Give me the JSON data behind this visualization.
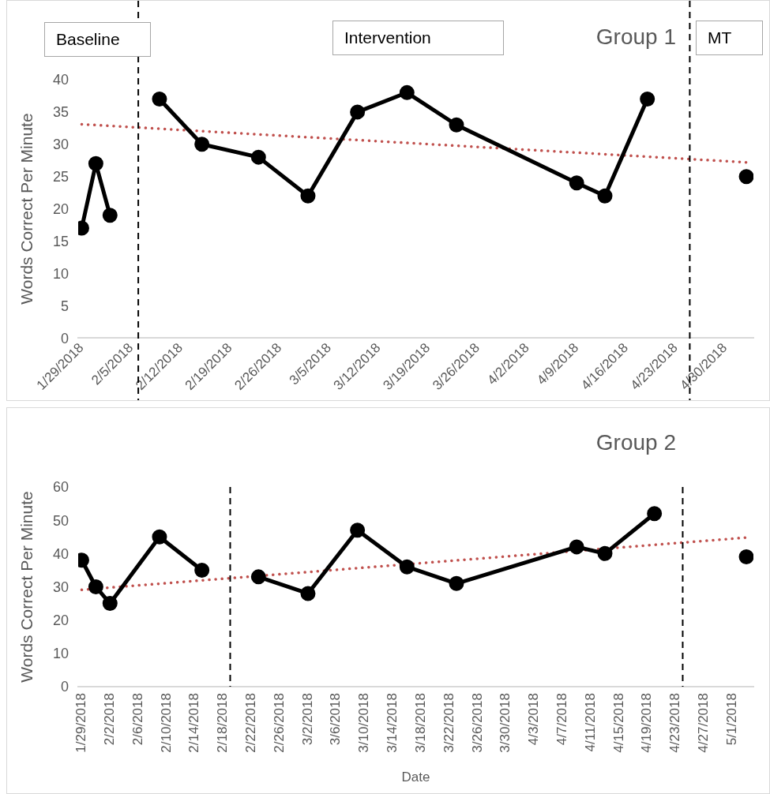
{
  "chart_data": [
    {
      "type": "line",
      "title": "Group 1",
      "ylabel": "Words Correct Per Minute",
      "annotations": [
        "Baseline",
        "Intervention",
        "MT"
      ],
      "xlim": [
        "2018-01-28T12:00",
        "2018-05-04T00:00"
      ],
      "ylim": [
        0,
        40
      ],
      "yticks": [
        0,
        5,
        10,
        15,
        20,
        25,
        30,
        35,
        40
      ],
      "xticks": [
        {
          "value": "2018-01-29",
          "label": "1/29/2018"
        },
        {
          "value": "2018-02-05",
          "label": "2/5/2018"
        },
        {
          "value": "2018-02-12",
          "label": "2/12/2018"
        },
        {
          "value": "2018-02-19",
          "label": "2/19/2018"
        },
        {
          "value": "2018-02-26",
          "label": "2/26/2018"
        },
        {
          "value": "2018-03-05",
          "label": "3/5/2018"
        },
        {
          "value": "2018-03-12",
          "label": "3/12/2018"
        },
        {
          "value": "2018-03-19",
          "label": "3/19/2018"
        },
        {
          "value": "2018-03-26",
          "label": "3/26/2018"
        },
        {
          "value": "2018-04-02",
          "label": "4/2/2018"
        },
        {
          "value": "2018-04-09",
          "label": "4/9/2018"
        },
        {
          "value": "2018-04-16",
          "label": "4/16/2018"
        },
        {
          "value": "2018-04-23",
          "label": "4/23/2018"
        },
        {
          "value": "2018-04-30",
          "label": "4/30/2018"
        }
      ],
      "grid": false,
      "legend": false,
      "series": [
        {
          "type": "line",
          "color": "#000000",
          "marker": "circle",
          "line_style": "solid",
          "x": [
            "2018-01-29",
            "2018-01-31",
            "2018-02-02"
          ],
          "values": [
            17,
            27,
            19
          ]
        },
        {
          "type": "line",
          "color": "#000000",
          "marker": "circle",
          "line_style": "solid",
          "x": [
            "2018-02-09",
            "2018-02-15",
            "2018-02-23",
            "2018-03-02",
            "2018-03-09",
            "2018-03-16",
            "2018-03-23",
            "2018-04-09",
            "2018-04-13",
            "2018-04-19"
          ],
          "values": [
            37,
            30,
            28,
            22,
            35,
            38,
            33,
            24,
            22,
            37
          ]
        },
        {
          "type": "scatter",
          "color": "#000000",
          "marker": "circle",
          "x": [
            "2018-05-03"
          ],
          "values": [
            25
          ]
        },
        {
          "type": "line",
          "color": "#c0504d",
          "marker": "none",
          "line_style": "dotted",
          "x": [
            "2018-01-29",
            "2018-05-03"
          ],
          "values": [
            33.1,
            27.2
          ]
        }
      ],
      "ref_lines": [
        {
          "axis": "x",
          "value": "2018-02-06",
          "label": null,
          "color": "#000000",
          "line_style": "dashed"
        },
        {
          "axis": "x",
          "value": "2018-04-25",
          "label": null,
          "color": "#000000",
          "line_style": "dashed"
        }
      ]
    },
    {
      "type": "line",
      "title": "Group 2",
      "xlabel": "Date",
      "ylabel": "Words Correct Per Minute",
      "xlim": [
        "2018-01-28T12:00",
        "2018-05-04T00:00"
      ],
      "ylim": [
        0,
        60
      ],
      "yticks": [
        0,
        10,
        20,
        30,
        40,
        50,
        60
      ],
      "xticks": [
        {
          "value": "2018-01-29",
          "label": "1/29/2018"
        },
        {
          "value": "2018-02-02",
          "label": "2/2/2018"
        },
        {
          "value": "2018-02-06",
          "label": "2/6/2018"
        },
        {
          "value": "2018-02-10",
          "label": "2/10/2018"
        },
        {
          "value": "2018-02-14",
          "label": "2/14/2018"
        },
        {
          "value": "2018-02-18",
          "label": "2/18/2018"
        },
        {
          "value": "2018-02-22",
          "label": "2/22/2018"
        },
        {
          "value": "2018-02-26",
          "label": "2/26/2018"
        },
        {
          "value": "2018-03-02",
          "label": "3/2/2018"
        },
        {
          "value": "2018-03-06",
          "label": "3/6/2018"
        },
        {
          "value": "2018-03-10",
          "label": "3/10/2018"
        },
        {
          "value": "2018-03-14",
          "label": "3/14/2018"
        },
        {
          "value": "2018-03-18",
          "label": "3/18/2018"
        },
        {
          "value": "2018-03-22",
          "label": "3/22/2018"
        },
        {
          "value": "2018-03-26",
          "label": "3/26/2018"
        },
        {
          "value": "2018-03-30",
          "label": "3/30/2018"
        },
        {
          "value": "2018-04-03",
          "label": "4/3/2018"
        },
        {
          "value": "2018-04-07",
          "label": "4/7/2018"
        },
        {
          "value": "2018-04-11",
          "label": "4/11/2018"
        },
        {
          "value": "2018-04-15",
          "label": "4/15/2018"
        },
        {
          "value": "2018-04-19",
          "label": "4/19/2018"
        },
        {
          "value": "2018-04-23",
          "label": "4/23/2018"
        },
        {
          "value": "2018-04-27",
          "label": "4/27/2018"
        },
        {
          "value": "2018-05-01",
          "label": "5/1/2018"
        }
      ],
      "grid": false,
      "legend": false,
      "series": [
        {
          "type": "line",
          "color": "#000000",
          "marker": "circle",
          "line_style": "solid",
          "x": [
            "2018-01-29",
            "2018-01-31",
            "2018-02-02",
            "2018-02-09",
            "2018-02-15"
          ],
          "values": [
            38,
            30,
            25,
            45,
            35
          ]
        },
        {
          "type": "line",
          "color": "#000000",
          "marker": "circle",
          "line_style": "solid",
          "x": [
            "2018-02-23",
            "2018-03-02",
            "2018-03-09",
            "2018-03-16",
            "2018-03-23",
            "2018-04-09",
            "2018-04-13",
            "2018-04-20"
          ],
          "values": [
            33,
            28,
            47,
            36,
            31,
            42,
            40,
            52
          ]
        },
        {
          "type": "scatter",
          "color": "#000000",
          "marker": "circle",
          "x": [
            "2018-05-03"
          ],
          "values": [
            39
          ]
        },
        {
          "type": "line",
          "color": "#c0504d",
          "marker": "none",
          "line_style": "dotted",
          "x": [
            "2018-01-29",
            "2018-05-03"
          ],
          "values": [
            29.1,
            44.8
          ]
        }
      ],
      "ref_lines": [
        {
          "axis": "x",
          "value": "2018-02-19",
          "label": null,
          "color": "#000000",
          "line_style": "dashed"
        },
        {
          "axis": "x",
          "value": "2018-04-24",
          "label": null,
          "color": "#000000",
          "line_style": "dashed"
        }
      ]
    }
  ]
}
